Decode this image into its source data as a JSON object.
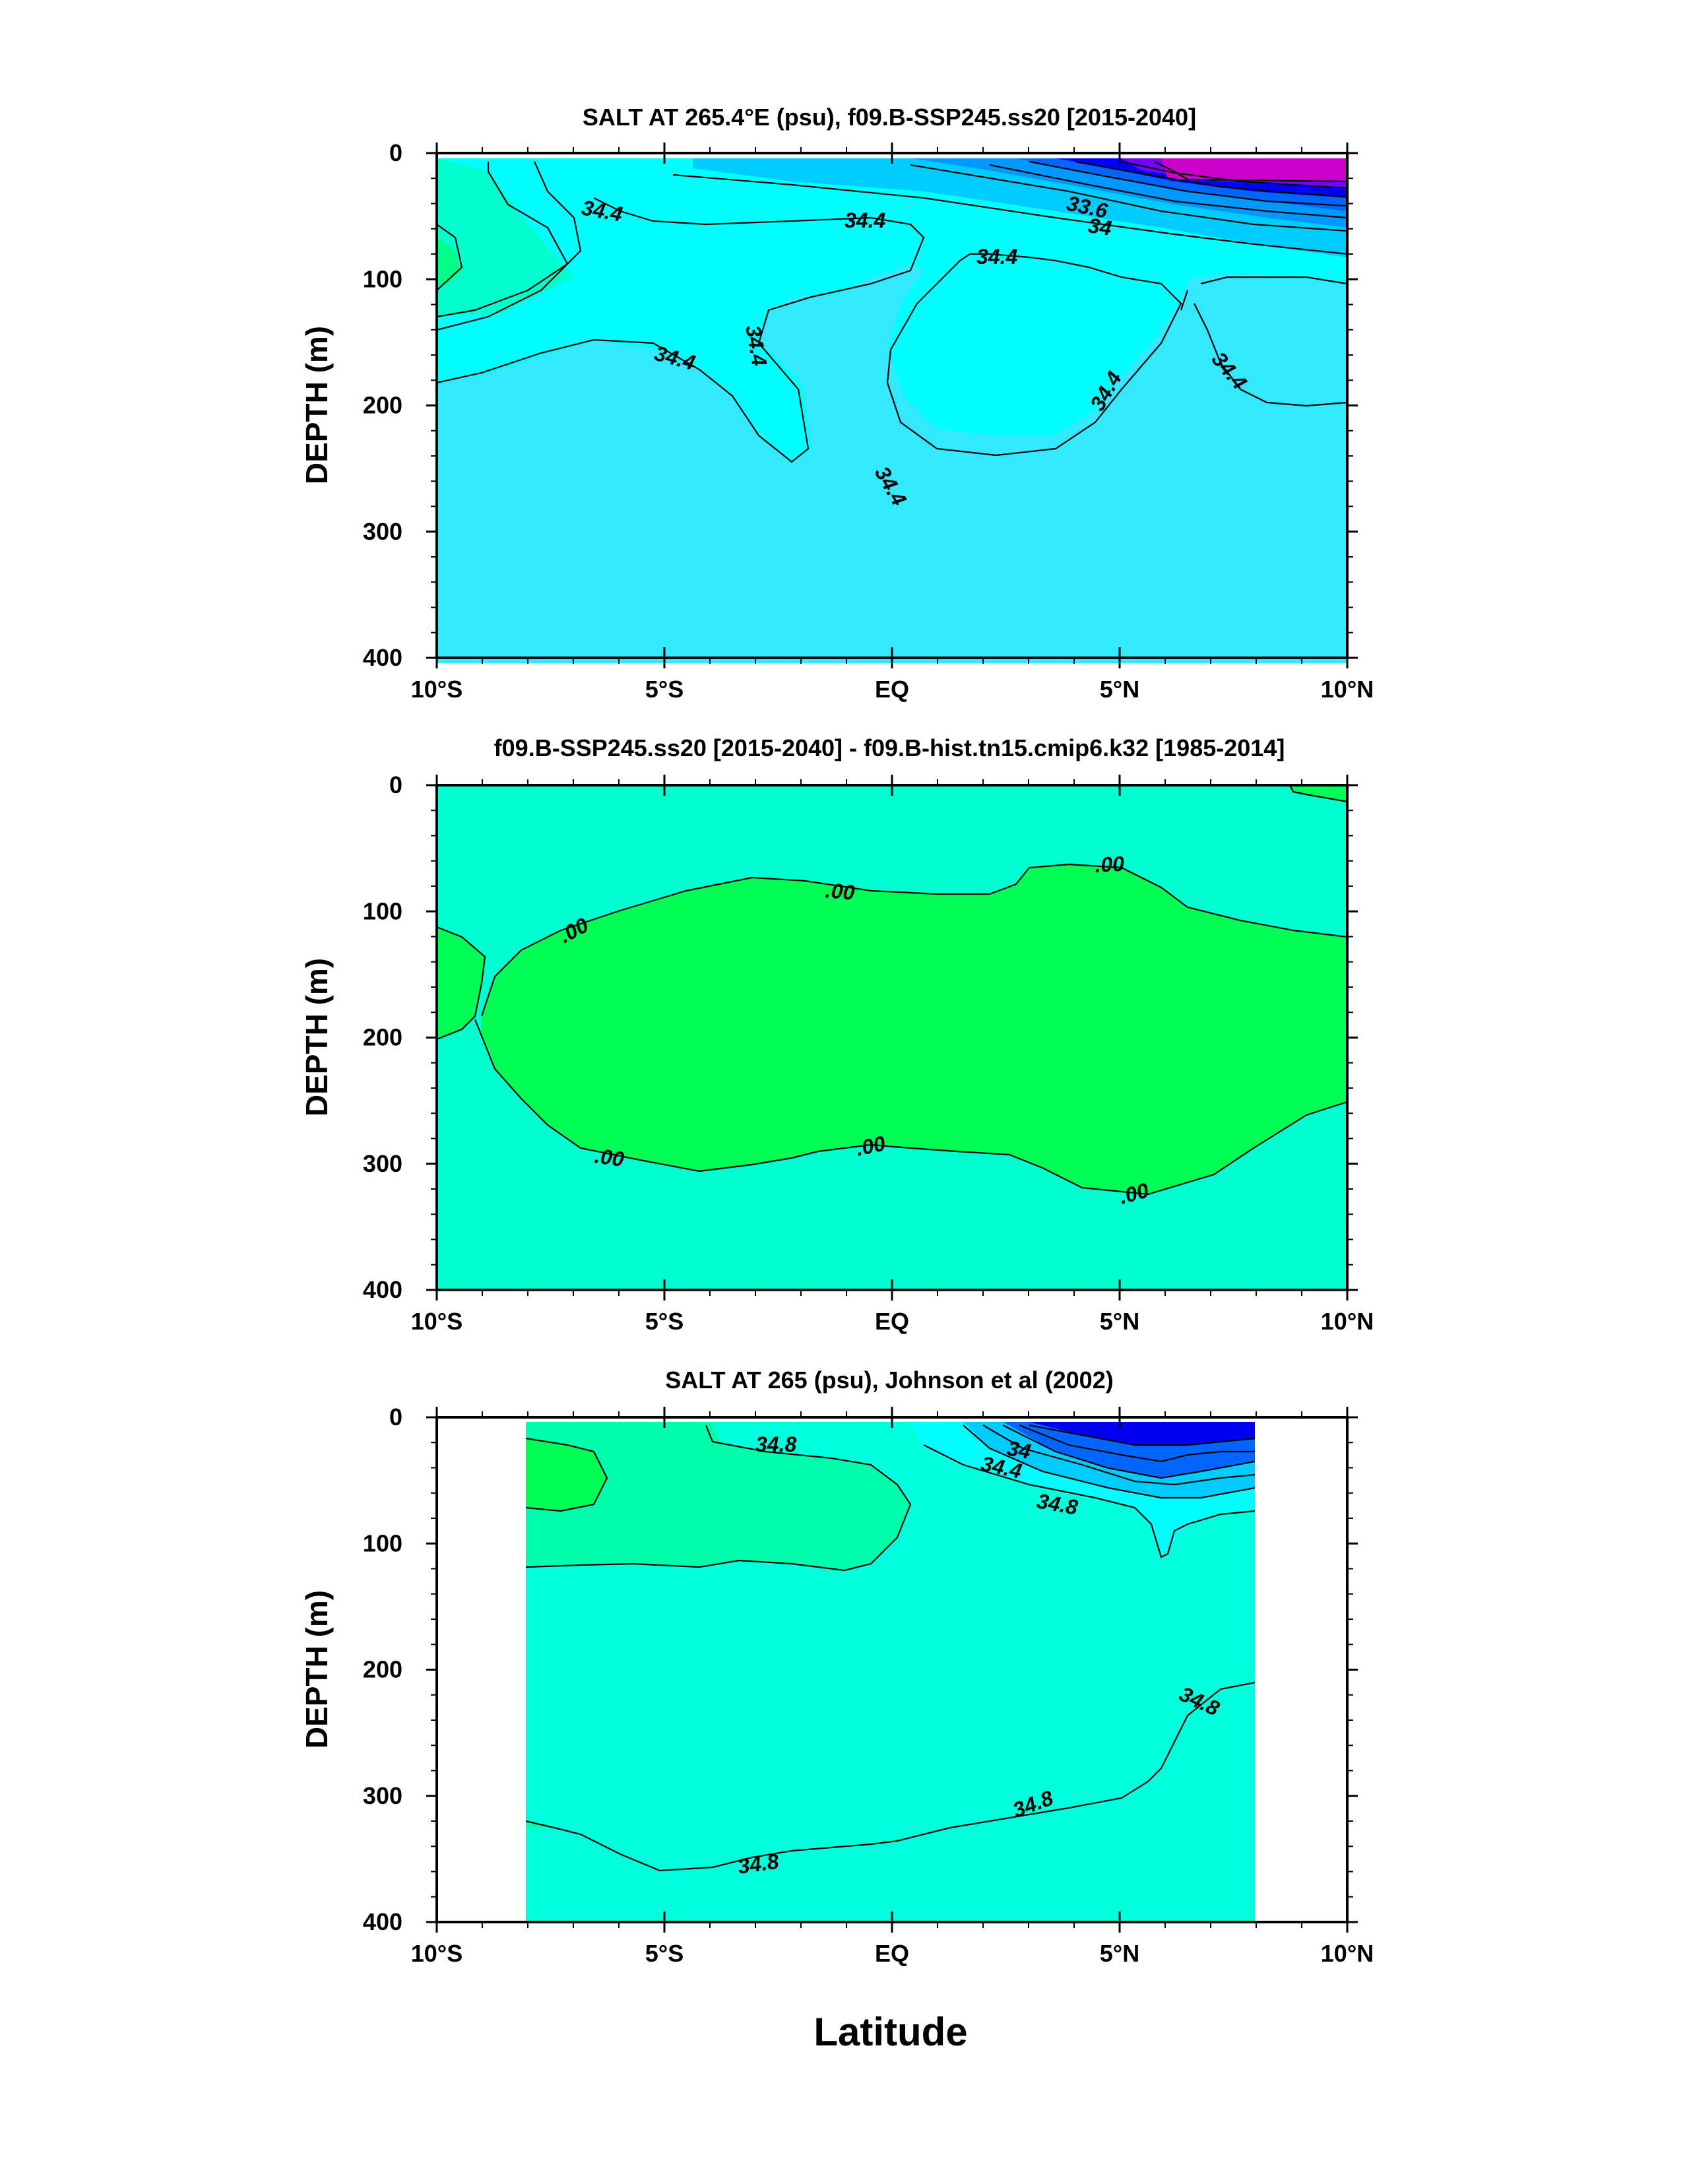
{
  "chart_data": [
    {
      "type": "contour",
      "title": "SALT AT 265.4°E (psu), f09.B-SSP245.ss20 [2015-2040]",
      "ylabel": "DEPTH (m)",
      "xlabel": "",
      "x_ticks": [
        "10°S",
        "5°S",
        "EQ",
        "5°N",
        "10°N"
      ],
      "y_ticks": [
        "0",
        "100",
        "200",
        "300",
        "400"
      ],
      "xlim": [
        -10,
        10
      ],
      "ylim": [
        400,
        0
      ],
      "contour_labels": [
        "34.4",
        "34.4",
        "34.4",
        "34.4",
        "34.4",
        "34.4",
        "34.4",
        "34.4",
        "33.6",
        "34"
      ],
      "fill_colors": [
        "#33e8ff",
        "#00ffff",
        "#00ffcc",
        "#00ff66",
        "#00ccff",
        "#0099ff",
        "#0066ff",
        "#0000ff",
        "#7700ff",
        "#cc00cc"
      ]
    },
    {
      "type": "contour",
      "title": "f09.B-SSP245.ss20 [2015-2040] - f09.B-hist.tn15.cmip6.k32 [1985-2014]",
      "ylabel": "DEPTH (m)",
      "xlabel": "",
      "x_ticks": [
        "10°S",
        "5°S",
        "EQ",
        "5°N",
        "10°N"
      ],
      "y_ticks": [
        "0",
        "100",
        "200",
        "300",
        "400"
      ],
      "xlim": [
        -10,
        10
      ],
      "ylim": [
        400,
        0
      ],
      "contour_labels": [
        ".00",
        ".00",
        ".00",
        ".00",
        ".00",
        ".00"
      ],
      "fill_colors": [
        "#00ffd0",
        "#00ff55"
      ]
    },
    {
      "type": "contour",
      "title": "SALT AT 265 (psu), Johnson et al (2002)",
      "ylabel": "DEPTH (m)",
      "xlabel": "Latitude",
      "x_ticks": [
        "10°S",
        "5°S",
        "EQ",
        "5°N",
        "10°N"
      ],
      "y_ticks": [
        "0",
        "100",
        "200",
        "300",
        "400"
      ],
      "xlim": [
        -10,
        10
      ],
      "ylim": [
        400,
        0
      ],
      "contour_labels": [
        "34.8",
        "34",
        "34.4",
        "34.8",
        "34.8",
        "34.8",
        "34.8"
      ],
      "fill_colors": [
        "#00ffdd",
        "#00ffaa",
        "#00ff55",
        "#00ff00",
        "#00ffff",
        "#00ccff",
        "#0066ff",
        "#0000ee"
      ]
    }
  ]
}
